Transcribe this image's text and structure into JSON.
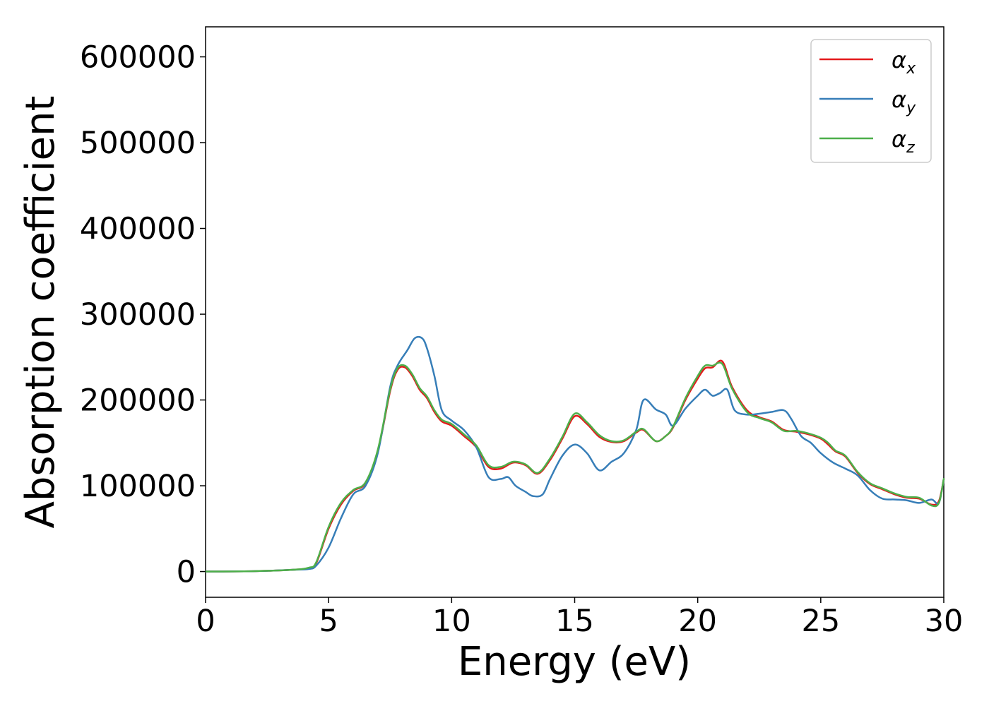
{
  "chart_data": {
    "type": "line",
    "title": "",
    "xlabel": "Energy (eV)",
    "ylabel": "Absorption coefficient",
    "xlim": [
      0,
      30
    ],
    "ylim": [
      -30000,
      635000
    ],
    "xticks": [
      0,
      5,
      10,
      15,
      20,
      25,
      30
    ],
    "xtick_labels": [
      "0",
      "5",
      "10",
      "15",
      "20",
      "25",
      "30"
    ],
    "yticks": [
      0,
      100000,
      200000,
      300000,
      400000,
      500000,
      600000
    ],
    "ytick_labels": [
      "0",
      "100000",
      "200000",
      "300000",
      "400000",
      "500000",
      "600000"
    ],
    "grid": false,
    "legend_position": "top-right",
    "series": [
      {
        "name": "α_x",
        "legend_main": "α",
        "legend_sub": "x",
        "color": "#e41a1c",
        "x": [
          0,
          2,
          3.5,
          4.2,
          4.5,
          5,
          5.5,
          6,
          6.5,
          7,
          7.5,
          7.8,
          8.1,
          8.4,
          8.7,
          9,
          9.3,
          9.6,
          10,
          10.5,
          11,
          11.5,
          12,
          12.5,
          13,
          13.5,
          14,
          14.5,
          15,
          15.5,
          16,
          16.5,
          17,
          17.5,
          17.8,
          18.3,
          18.7,
          19,
          19.5,
          20,
          20.3,
          20.6,
          21,
          21.4,
          22,
          22.5,
          23,
          23.5,
          24,
          24.5,
          25,
          25.3,
          25.6,
          26,
          26.5,
          27,
          27.5,
          28,
          28.5,
          29,
          29.5,
          29.8,
          30
        ],
        "y": [
          0,
          500,
          2000,
          4000,
          10000,
          50000,
          78000,
          94000,
          103000,
          140000,
          210000,
          235000,
          238000,
          228000,
          212000,
          202000,
          186000,
          175000,
          170000,
          158000,
          145000,
          122000,
          120000,
          127000,
          124000,
          114000,
          130000,
          155000,
          181000,
          172000,
          157000,
          151000,
          152000,
          162000,
          165000,
          152000,
          158000,
          168000,
          200000,
          225000,
          237000,
          238000,
          245000,
          215000,
          188000,
          180000,
          175000,
          165000,
          163000,
          160000,
          155000,
          148000,
          140000,
          134000,
          115000,
          102000,
          96000,
          90000,
          86000,
          85000,
          78000,
          82000,
          108000
        ]
      },
      {
        "name": "α_y",
        "legend_main": "α",
        "legend_sub": "y",
        "color": "#377eb8",
        "x": [
          0,
          2,
          3.5,
          4.2,
          4.5,
          5,
          5.5,
          6,
          6.5,
          7,
          7.5,
          7.8,
          8.2,
          8.5,
          8.8,
          9,
          9.3,
          9.6,
          10,
          10.5,
          11,
          11.5,
          12,
          12.3,
          12.6,
          13,
          13.3,
          13.7,
          14,
          14.5,
          15,
          15.5,
          16,
          16.5,
          17,
          17.5,
          17.8,
          18.3,
          18.7,
          19,
          19.5,
          20,
          20.3,
          20.6,
          20.9,
          21.2,
          21.5,
          22,
          22.5,
          23,
          23.5,
          23.8,
          24.2,
          24.6,
          25,
          25.5,
          26,
          26.5,
          27,
          27.5,
          28,
          28.5,
          29,
          29.5,
          29.8,
          30
        ],
        "y": [
          0,
          500,
          2000,
          3000,
          7000,
          28000,
          62000,
          90000,
          100000,
          138000,
          215000,
          240000,
          258000,
          272000,
          272000,
          260000,
          228000,
          188000,
          176000,
          165000,
          145000,
          110000,
          108000,
          110000,
          100000,
          93000,
          88000,
          90000,
          108000,
          135000,
          148000,
          138000,
          118000,
          128000,
          138000,
          165000,
          200000,
          189000,
          183000,
          170000,
          190000,
          205000,
          212000,
          205000,
          208000,
          212000,
          188000,
          183000,
          184000,
          186000,
          188000,
          178000,
          158000,
          150000,
          138000,
          127000,
          120000,
          112000,
          95000,
          85000,
          84000,
          83000,
          80000,
          84000,
          80000,
          108000
        ]
      },
      {
        "name": "α_z",
        "legend_main": "α",
        "legend_sub": "z",
        "color": "#4daf4a",
        "x": [
          0,
          2,
          3.5,
          4.2,
          4.5,
          5,
          5.5,
          6,
          6.5,
          7,
          7.5,
          7.8,
          8.1,
          8.4,
          8.7,
          9,
          9.3,
          9.6,
          10,
          10.5,
          11,
          11.5,
          12,
          12.5,
          13,
          13.5,
          14,
          14.5,
          15,
          15.5,
          16,
          16.5,
          17,
          17.5,
          17.8,
          18.3,
          18.7,
          19,
          19.5,
          20,
          20.3,
          20.6,
          21,
          21.4,
          22,
          22.5,
          23,
          23.5,
          24,
          24.5,
          25,
          25.3,
          25.6,
          26,
          26.5,
          27,
          27.5,
          28,
          28.5,
          29,
          29.5,
          29.8,
          30
        ],
        "y": [
          0,
          500,
          2000,
          4500,
          11000,
          52000,
          80000,
          95000,
          104000,
          142000,
          212000,
          237000,
          240000,
          230000,
          214000,
          204000,
          188000,
          177000,
          172000,
          160000,
          147000,
          124000,
          122000,
          128000,
          125000,
          115000,
          132000,
          157000,
          184000,
          174000,
          159000,
          152000,
          153000,
          163000,
          166000,
          152000,
          158000,
          169000,
          202000,
          228000,
          240000,
          240000,
          242000,
          213000,
          186000,
          179000,
          174000,
          164000,
          164000,
          161000,
          156000,
          150000,
          141000,
          135000,
          116000,
          103000,
          97000,
          91000,
          87000,
          86000,
          77000,
          80000,
          108000
        ]
      }
    ]
  }
}
